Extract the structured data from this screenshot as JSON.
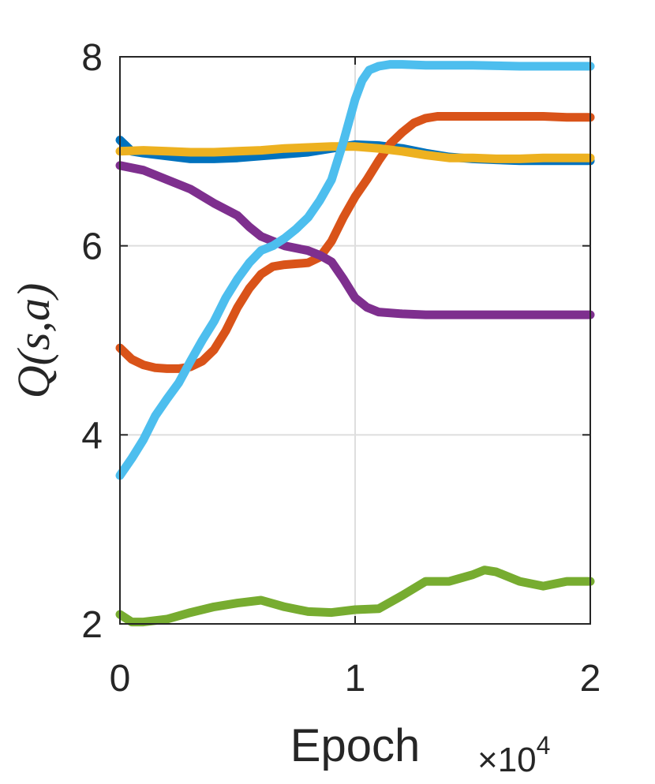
{
  "chart_data": {
    "type": "line",
    "title": "",
    "xlabel": "Epoch",
    "ylabel": "Q(s,a)",
    "x_exponent_label": "×10",
    "x_exponent_power": "4",
    "xlim": [
      0,
      2
    ],
    "ylim": [
      2,
      8
    ],
    "xticks": [
      "0",
      "1",
      "2"
    ],
    "yticks": [
      "2",
      "4",
      "6",
      "8"
    ],
    "grid": true,
    "legend": "none",
    "series": [
      {
        "color": "#0072BD",
        "x": [
          0,
          0.05,
          0.1,
          0.2,
          0.3,
          0.4,
          0.5,
          0.6,
          0.7,
          0.8,
          0.9,
          1.0,
          1.1,
          1.2,
          1.3,
          1.4,
          1.5,
          1.6,
          1.7,
          1.8,
          1.9,
          2.0
        ],
        "y": [
          7.12,
          7.0,
          6.98,
          6.95,
          6.92,
          6.92,
          6.93,
          6.95,
          6.97,
          6.99,
          7.03,
          7.07,
          7.06,
          7.03,
          6.98,
          6.94,
          6.92,
          6.91,
          6.9,
          6.9,
          6.9,
          6.9
        ]
      },
      {
        "color": "#D95319",
        "x": [
          0,
          0.05,
          0.1,
          0.15,
          0.2,
          0.25,
          0.3,
          0.35,
          0.4,
          0.45,
          0.5,
          0.55,
          0.6,
          0.65,
          0.7,
          0.75,
          0.8,
          0.85,
          0.9,
          0.95,
          1.0,
          1.05,
          1.1,
          1.15,
          1.2,
          1.25,
          1.3,
          1.35,
          1.4,
          1.5,
          1.6,
          1.7,
          1.8,
          1.9,
          2.0
        ],
        "y": [
          4.92,
          4.8,
          4.74,
          4.71,
          4.7,
          4.7,
          4.72,
          4.78,
          4.9,
          5.1,
          5.35,
          5.55,
          5.7,
          5.78,
          5.8,
          5.81,
          5.82,
          5.88,
          6.05,
          6.3,
          6.52,
          6.7,
          6.9,
          7.08,
          7.2,
          7.3,
          7.35,
          7.37,
          7.37,
          7.37,
          7.37,
          7.37,
          7.37,
          7.36,
          7.36
        ]
      },
      {
        "color": "#EDB120",
        "x": [
          0,
          0.1,
          0.2,
          0.3,
          0.4,
          0.5,
          0.6,
          0.7,
          0.8,
          0.9,
          1.0,
          1.1,
          1.2,
          1.3,
          1.4,
          1.5,
          1.6,
          1.7,
          1.8,
          1.9,
          2.0
        ],
        "y": [
          7.0,
          7.01,
          7.0,
          6.99,
          6.99,
          7.0,
          7.01,
          7.03,
          7.04,
          7.05,
          7.05,
          7.03,
          7.0,
          6.96,
          6.93,
          6.93,
          6.92,
          6.92,
          6.93,
          6.93,
          6.93
        ]
      },
      {
        "color": "#7E2F8E",
        "x": [
          0,
          0.1,
          0.2,
          0.3,
          0.4,
          0.5,
          0.55,
          0.6,
          0.7,
          0.8,
          0.85,
          0.9,
          0.95,
          1.0,
          1.05,
          1.1,
          1.2,
          1.3,
          1.5,
          1.7,
          2.0
        ],
        "y": [
          6.85,
          6.8,
          6.7,
          6.6,
          6.45,
          6.32,
          6.2,
          6.1,
          6.0,
          5.95,
          5.9,
          5.83,
          5.65,
          5.45,
          5.35,
          5.3,
          5.28,
          5.27,
          5.27,
          5.27,
          5.27
        ]
      },
      {
        "color": "#77AC30",
        "x": [
          0,
          0.05,
          0.1,
          0.2,
          0.3,
          0.4,
          0.5,
          0.6,
          0.7,
          0.8,
          0.9,
          1.0,
          1.1,
          1.2,
          1.3,
          1.4,
          1.5,
          1.55,
          1.6,
          1.7,
          1.8,
          1.9,
          2.0
        ],
        "y": [
          2.1,
          2.02,
          2.02,
          2.05,
          2.12,
          2.18,
          2.22,
          2.25,
          2.18,
          2.13,
          2.12,
          2.15,
          2.16,
          2.3,
          2.45,
          2.45,
          2.52,
          2.57,
          2.55,
          2.45,
          2.4,
          2.45,
          2.45
        ]
      },
      {
        "color": "#4DBEEE",
        "x": [
          0,
          0.05,
          0.1,
          0.15,
          0.2,
          0.25,
          0.3,
          0.35,
          0.4,
          0.45,
          0.5,
          0.55,
          0.6,
          0.65,
          0.7,
          0.75,
          0.8,
          0.85,
          0.9,
          0.95,
          1.0,
          1.03,
          1.06,
          1.1,
          1.15,
          1.2,
          1.3,
          1.5,
          1.7,
          2.0
        ],
        "y": [
          3.57,
          3.75,
          3.95,
          4.2,
          4.38,
          4.55,
          4.78,
          5.0,
          5.2,
          5.45,
          5.65,
          5.82,
          5.95,
          6.0,
          6.08,
          6.18,
          6.3,
          6.48,
          6.7,
          7.1,
          7.55,
          7.75,
          7.86,
          7.9,
          7.92,
          7.92,
          7.91,
          7.91,
          7.9,
          7.9
        ]
      }
    ]
  }
}
